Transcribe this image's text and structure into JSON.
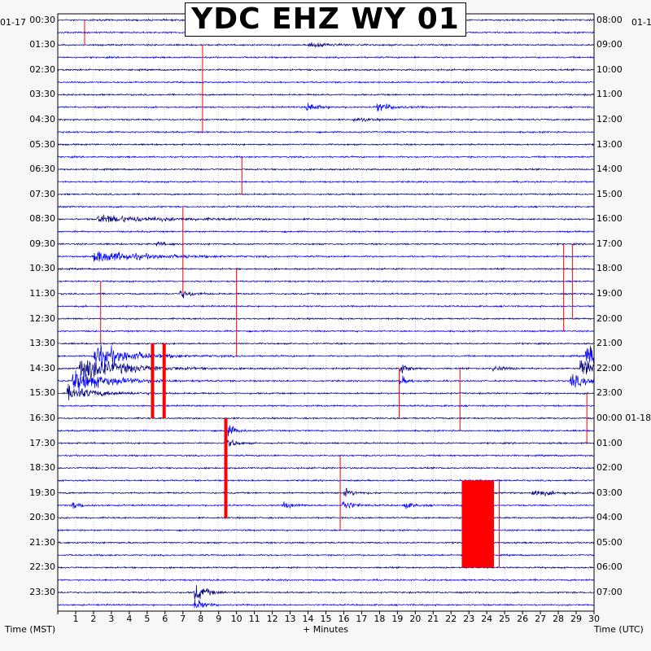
{
  "title": "YDC EHZ WY 01",
  "left_date": "01-17",
  "right_date": "01-1",
  "xlabel_left": "Time (MST)",
  "xlabel_center": "+ Minutes",
  "xlabel_right": "Time (UTC)",
  "colors": {
    "trace_dark": "#000080",
    "trace_blue": "#0000ff",
    "pick": "#ff0000",
    "grid": "#b8b8b8"
  },
  "chart_data": {
    "type": "line",
    "x_range": [
      0,
      30
    ],
    "x_ticks": [
      "1",
      "2",
      "3",
      "4",
      "5",
      "6",
      "7",
      "8",
      "9",
      "10",
      "11",
      "12",
      "13",
      "14",
      "15",
      "16",
      "17",
      "18",
      "19",
      "20",
      "21",
      "22",
      "23",
      "24",
      "25",
      "26",
      "27",
      "28",
      "29",
      "30"
    ],
    "rows_per_hour": 2,
    "left_time_labels": [
      "00:30",
      "01:30",
      "02:30",
      "03:30",
      "04:30",
      "05:30",
      "06:30",
      "07:30",
      "08:30",
      "09:30",
      "10:30",
      "11:30",
      "12:30",
      "13:30",
      "14:30",
      "15:30",
      "16:30",
      "17:30",
      "18:30",
      "19:30",
      "20:30",
      "21:30",
      "22:30",
      "23:30"
    ],
    "right_time_labels": [
      "08:00",
      "09:00",
      "10:00",
      "11:00",
      "12:00",
      "13:00",
      "14:00",
      "15:00",
      "16:00",
      "17:00",
      "18:00",
      "19:00",
      "20:00",
      "21:00",
      "22:00",
      "23:00",
      "00:00 01-18",
      "01:00",
      "02:00",
      "03:00",
      "04:00",
      "05:00",
      "06:00",
      "07:00"
    ],
    "events": [
      {
        "row": 1,
        "minute": 12.5,
        "amp": 7,
        "width": 0.3
      },
      {
        "row": 2,
        "minute": 14,
        "amp": 6,
        "width": 1.0
      },
      {
        "row": 7,
        "minute": 13.9,
        "amp": 9,
        "width": 0.6
      },
      {
        "row": 7,
        "minute": 17.8,
        "amp": 9,
        "width": 0.8
      },
      {
        "row": 8,
        "minute": 16.5,
        "amp": 4,
        "width": 0.8
      },
      {
        "row": 16,
        "minute": 2.2,
        "amp": 8,
        "width": 3.0
      },
      {
        "row": 18,
        "minute": 5.5,
        "amp": 5,
        "width": 0.5
      },
      {
        "row": 22,
        "minute": 6.8,
        "amp": 9,
        "width": 0.6
      },
      {
        "row": 27,
        "minute": 2.0,
        "amp": 24,
        "width": 1.8
      },
      {
        "row": 28,
        "minute": 1.2,
        "amp": 26,
        "width": 2.2
      },
      {
        "row": 29,
        "minute": 0.8,
        "amp": 20,
        "width": 2.0
      },
      {
        "row": 30,
        "minute": 0.5,
        "amp": 14,
        "width": 1.5
      },
      {
        "row": 27,
        "minute": 29.5,
        "amp": 22,
        "width": 1.6
      },
      {
        "row": 28,
        "minute": 29.2,
        "amp": 20,
        "width": 1.6
      },
      {
        "row": 29,
        "minute": 28.6,
        "amp": 12,
        "width": 1.4
      },
      {
        "row": 28,
        "minute": 19.1,
        "amp": 14,
        "width": 0.4
      },
      {
        "row": 29,
        "minute": 19.1,
        "amp": 10,
        "width": 0.4
      },
      {
        "row": 28,
        "minute": 24.3,
        "amp": 6,
        "width": 0.6
      },
      {
        "row": 33,
        "minute": 9.5,
        "amp": 12,
        "width": 0.4
      },
      {
        "row": 34,
        "minute": 9.5,
        "amp": 10,
        "width": 0.4
      },
      {
        "row": 38,
        "minute": 26.5,
        "amp": 7,
        "width": 1.0
      },
      {
        "row": 39,
        "minute": 15.9,
        "amp": 12,
        "width": 0.5
      },
      {
        "row": 38,
        "minute": 16.0,
        "amp": 9,
        "width": 0.5
      },
      {
        "row": 39,
        "minute": 12.6,
        "amp": 7,
        "width": 0.5
      },
      {
        "row": 39,
        "minute": 19.3,
        "amp": 7,
        "width": 0.5
      },
      {
        "row": 39,
        "minute": 0.8,
        "amp": 7,
        "width": 0.5
      },
      {
        "row": 46,
        "minute": 7.6,
        "amp": 20,
        "width": 0.6
      },
      {
        "row": 47,
        "minute": 7.6,
        "amp": 12,
        "width": 0.5
      },
      {
        "row": 19,
        "minute": 2.0,
        "amp": 12,
        "width": 2.5
      }
    ],
    "picks": [
      {
        "minute": 1.5,
        "row_start": 0,
        "row_end": 2,
        "thick": false
      },
      {
        "minute": 8.1,
        "row_start": 2,
        "row_end": 9,
        "thick": false
      },
      {
        "minute": 10.3,
        "row_start": 11,
        "row_end": 14,
        "thick": false
      },
      {
        "minute": 7.0,
        "row_start": 15,
        "row_end": 22,
        "thick": false
      },
      {
        "minute": 10.0,
        "row_start": 20,
        "row_end": 27,
        "thick": false
      },
      {
        "minute": 2.4,
        "row_start": 21,
        "row_end": 26,
        "thick": false
      },
      {
        "minute": 28.3,
        "row_start": 18,
        "row_end": 25,
        "thick": false
      },
      {
        "minute": 28.8,
        "row_start": 18,
        "row_end": 24,
        "thick": false
      },
      {
        "minute": 5.3,
        "row_start": 26,
        "row_end": 32,
        "thick": true
      },
      {
        "minute": 5.95,
        "row_start": 26,
        "row_end": 32,
        "thick": true
      },
      {
        "minute": 19.1,
        "row_start": 28,
        "row_end": 32,
        "thick": false
      },
      {
        "minute": 22.5,
        "row_start": 28,
        "row_end": 33,
        "thick": false
      },
      {
        "minute": 29.6,
        "row_start": 30,
        "row_end": 34,
        "thick": false
      },
      {
        "minute": 9.4,
        "row_start": 32,
        "row_end": 40,
        "thick": true
      },
      {
        "minute": 15.8,
        "row_start": 35,
        "row_end": 41,
        "thick": false
      },
      {
        "minute": 22.6,
        "row_start": 37,
        "row_end": 44,
        "block_end": 24.4,
        "thick": false
      },
      {
        "minute": 24.7,
        "row_start": 37,
        "row_end": 44,
        "thick": false
      }
    ]
  }
}
